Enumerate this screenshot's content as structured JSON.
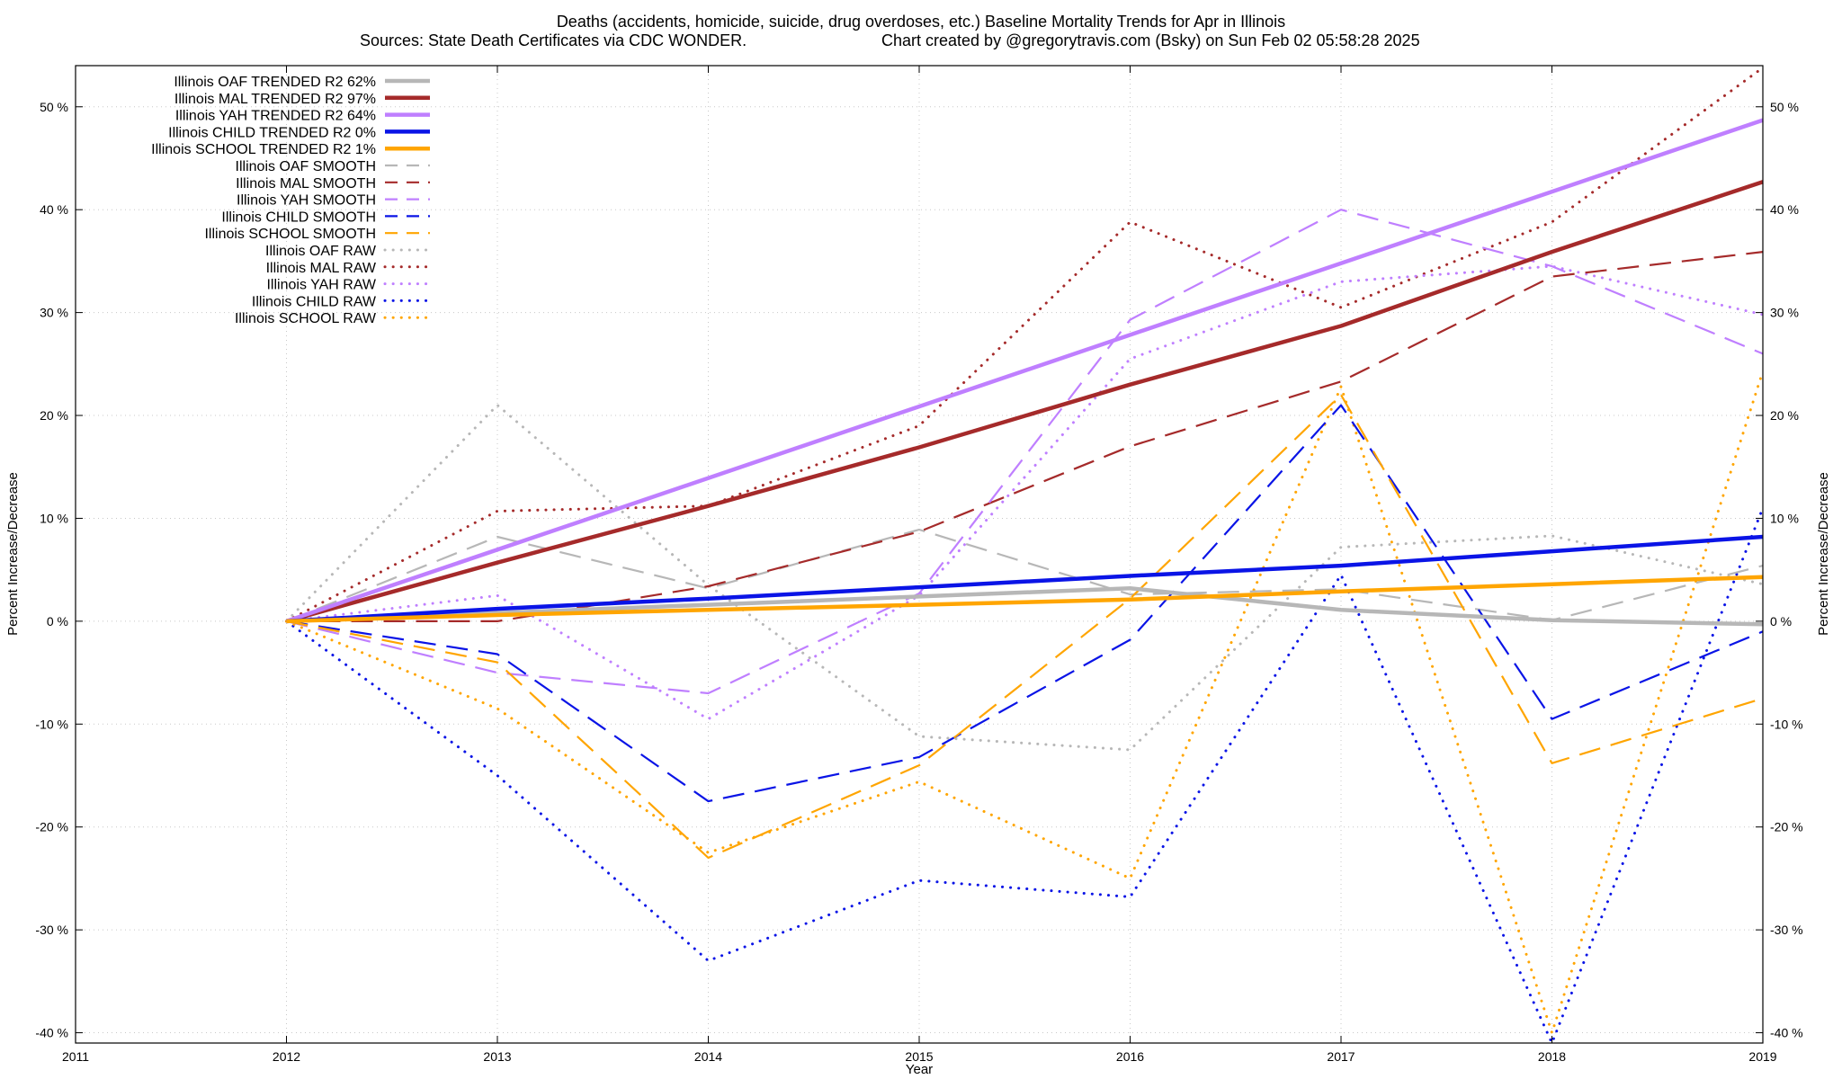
{
  "chart_data": {
    "type": "line",
    "title": "Deaths (accidents, homicide, suicide, drug overdoses, etc.)  Baseline Mortality Trends for Apr in Illinois",
    "subtitle_left": "Sources: State Death Certificates via CDC WONDER.",
    "subtitle_right": "Chart created by @gregorytravis.com (Bsky) on Sun Feb 02 05:58:28 2025",
    "xlabel": "Year",
    "ylabel": "Percent Increase/Decrease",
    "y2label": "Percent Increase/Decrease",
    "xlim": [
      2011,
      2019
    ],
    "ylim": [
      -41,
      54
    ],
    "x_ticks": [
      2011,
      2012,
      2013,
      2014,
      2015,
      2016,
      2017,
      2018,
      2019
    ],
    "y_ticks": [
      {
        "v": 50,
        "label": "50 %"
      },
      {
        "v": 40,
        "label": "40 %"
      },
      {
        "v": 30,
        "label": "30 %"
      },
      {
        "v": 20,
        "label": "20 %"
      },
      {
        "v": 10,
        "label": "10 %"
      },
      {
        "v": 0,
        "label": "0 %"
      },
      {
        "v": -10,
        "label": "-10 %"
      },
      {
        "v": -20,
        "label": "-20 %"
      },
      {
        "v": -30,
        "label": "-30 %"
      },
      {
        "v": -40,
        "label": "-40 %"
      }
    ],
    "grid": true,
    "legend_position": "top-left",
    "series": [
      {
        "name": "Illinois OAF TRENDED R2  62%",
        "style": "trend",
        "color": "#b7b7b7",
        "x": [
          2012,
          2013,
          2014,
          2015,
          2016,
          2017,
          2018,
          2019
        ],
        "y": [
          0,
          0.8,
          1.6,
          2.4,
          3.2,
          1.1,
          0.1,
          -0.3
        ]
      },
      {
        "name": "Illinois MAL TRENDED R2  97%",
        "style": "trend",
        "color": "#a52a2a",
        "x": [
          2012,
          2013,
          2014,
          2015,
          2016,
          2017,
          2018,
          2019
        ],
        "y": [
          0,
          5.7,
          11.2,
          16.9,
          23.0,
          28.7,
          35.9,
          42.7
        ]
      },
      {
        "name": "Illinois YAH TRENDED R2  64%",
        "style": "trend",
        "color": "#bf7fff",
        "x": [
          2012,
          2019
        ],
        "y": [
          0,
          48.7
        ]
      },
      {
        "name": "Illinois CHILD TRENDED R2   0%",
        "style": "trend",
        "color": "#0a14e6",
        "x": [
          2012,
          2013,
          2014,
          2015,
          2016,
          2017,
          2018,
          2019
        ],
        "y": [
          0,
          1.2,
          2.2,
          3.3,
          4.4,
          5.4,
          6.8,
          8.2
        ]
      },
      {
        "name": "Illinois SCHOOL TRENDED R2   1%",
        "style": "trend",
        "color": "#ffa500",
        "x": [
          2012,
          2013,
          2014,
          2015,
          2016,
          2017,
          2018,
          2019
        ],
        "y": [
          0,
          0.6,
          1.1,
          1.6,
          2.1,
          2.9,
          3.6,
          4.3
        ]
      },
      {
        "name": "Illinois OAF SMOOTH",
        "style": "smooth",
        "color": "#b7b7b7",
        "x": [
          2012,
          2013,
          2014,
          2015,
          2016,
          2017,
          2018,
          2019
        ],
        "y": [
          0,
          8.2,
          3.2,
          8.9,
          2.6,
          3.1,
          0.1,
          5.4
        ]
      },
      {
        "name": "Illinois MAL SMOOTH",
        "style": "smooth",
        "color": "#a52a2a",
        "x": [
          2012,
          2013,
          2014,
          2015,
          2016,
          2017,
          2018,
          2019
        ],
        "y": [
          0,
          0,
          3.4,
          8.7,
          17.0,
          23.3,
          33.5,
          35.9
        ]
      },
      {
        "name": "Illinois YAH SMOOTH",
        "style": "smooth",
        "color": "#bf7fff",
        "x": [
          2012,
          2013,
          2014,
          2015,
          2016,
          2017,
          2018,
          2019
        ],
        "y": [
          0,
          -5.0,
          -7.0,
          2.7,
          29.3,
          40.0,
          34.5,
          26.0
        ]
      },
      {
        "name": "Illinois CHILD SMOOTH",
        "style": "smooth",
        "color": "#0a14e6",
        "x": [
          2012,
          2013,
          2014,
          2015,
          2016,
          2017,
          2018,
          2019
        ],
        "y": [
          0,
          -3.2,
          -17.5,
          -13.2,
          -1.8,
          21.0,
          -9.5,
          -1.0
        ]
      },
      {
        "name": "Illinois SCHOOL SMOOTH",
        "style": "smooth",
        "color": "#ffa500",
        "x": [
          2012,
          2013,
          2014,
          2015,
          2016,
          2017,
          2018,
          2019
        ],
        "y": [
          0,
          -4.0,
          -23.0,
          -14.0,
          2.2,
          22.0,
          -13.8,
          -7.5
        ]
      },
      {
        "name": "Illinois OAF RAW",
        "style": "raw",
        "color": "#b7b7b7",
        "x": [
          2012,
          2013,
          2014,
          2015,
          2016,
          2017,
          2018,
          2019
        ],
        "y": [
          0,
          21.0,
          3.5,
          -11.2,
          -12.5,
          7.2,
          8.3,
          3.6
        ]
      },
      {
        "name": "Illinois MAL RAW",
        "style": "raw",
        "color": "#a52a2a",
        "x": [
          2012,
          2013,
          2014,
          2015,
          2016,
          2017,
          2018,
          2019
        ],
        "y": [
          0,
          10.7,
          11.2,
          19.0,
          38.8,
          30.5,
          38.8,
          53.8
        ]
      },
      {
        "name": "Illinois YAH RAW",
        "style": "raw",
        "color": "#bf7fff",
        "x": [
          2012,
          2013,
          2014,
          2015,
          2016,
          2017,
          2018,
          2019
        ],
        "y": [
          0,
          2.5,
          -9.5,
          2.5,
          25.5,
          33.0,
          34.5,
          29.8
        ]
      },
      {
        "name": "Illinois CHILD RAW",
        "style": "raw",
        "color": "#0a14e6",
        "x": [
          2012,
          2013,
          2014,
          2015,
          2016,
          2017,
          2018,
          2019
        ],
        "y": [
          0,
          -15.0,
          -33.0,
          -25.2,
          -26.8,
          4.5,
          -41.0,
          11.0
        ]
      },
      {
        "name": "Illinois SCHOOL RAW",
        "style": "raw",
        "color": "#ffa500",
        "x": [
          2012,
          2013,
          2014,
          2015,
          2016,
          2017,
          2018,
          2019
        ],
        "y": [
          0,
          -8.5,
          -22.5,
          -15.6,
          -25.0,
          22.8,
          -40.0,
          24.3
        ]
      }
    ]
  }
}
